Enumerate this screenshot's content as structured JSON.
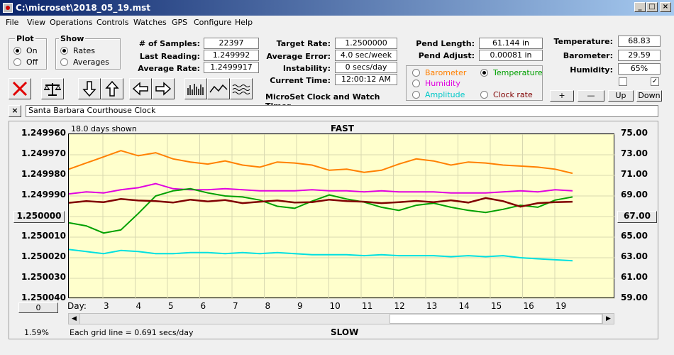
{
  "window": {
    "title": "C:\\microset\\2018_05_19.mst"
  },
  "menu": [
    "File",
    "View",
    "Operations",
    "Controls",
    "Watches",
    "GPS",
    "Configure",
    "Help"
  ],
  "plot_group": {
    "label": "Plot",
    "on": "On",
    "off": "Off",
    "selected": "On"
  },
  "show_group": {
    "label": "Show",
    "rates": "Rates",
    "averages": "Averages",
    "selected": "Rates"
  },
  "stats": {
    "samples_label": "# of Samples:",
    "samples": "22397",
    "last_label": "Last Reading:",
    "last": "1.249992",
    "avg_label": "Average Rate:",
    "avg": "1.2499917",
    "target_label": "Target Rate:",
    "target": "1.2500000",
    "error_label": "Average Error:",
    "error": "4.0 sec/week",
    "instab_label": "Instability:",
    "instab": "0 secs/day",
    "time_label": "Current Time:",
    "time": "12:00:12 AM",
    "pendlen_label": "Pend Length:",
    "pendlen": "61.144 in",
    "pendadj_label": "Pend Adjust:",
    "pendadj": "0.00081 in",
    "temp_label": "Temperature:",
    "temp": "68.83",
    "baro_label": "Barometer:",
    "baro": "29.59",
    "hum_label": "Humidity:",
    "hum": "65%"
  },
  "app_caption": "MicroSet Clock and Watch Timer",
  "sensor_group": {
    "barometer": "Barometer",
    "temperature": "Temperature",
    "humidity": "Humidity",
    "amplitude": "Amplitude",
    "clock_rate": "Clock rate",
    "selected": "Temperature"
  },
  "adjust_buttons": {
    "plus": "+",
    "minus": "—",
    "up": "Up",
    "down": "Down"
  },
  "clock_name": "Santa Barbara Courthouse Clock",
  "close_x": "×",
  "chart_header": {
    "days_shown": "18.0 days shown",
    "fast": "FAST",
    "slow": "SLOW",
    "grid_note": "Each grid line = 0.691 secs/day",
    "percent": "1.59%",
    "day_label": "Day:",
    "zero_btn": "0",
    "left_btn": "1.250000",
    "right_btn": "67.00"
  },
  "colors": {
    "barometer": "#ff8000",
    "temperature": "#00a000",
    "humidity": "#e000e0",
    "amplitude": "#00e0e0",
    "clock_rate": "#800000",
    "plot_bg": "#ffffcc"
  },
  "chart_data": {
    "type": "line",
    "x_label": "Day:",
    "x_ticks": [
      "3",
      "4",
      "5",
      "6",
      "7",
      "8",
      "9",
      "10",
      "11",
      "12",
      "13",
      "14",
      "15",
      "16",
      "19"
    ],
    "y_left_ticks": [
      "1.249960",
      "1.249970",
      "1.249980",
      "1.249990",
      "1.250000",
      "1.250010",
      "1.250020",
      "1.250030",
      "1.250040"
    ],
    "y_right_ticks": [
      "75.00",
      "73.00",
      "71.00",
      "69.00",
      "67.00",
      "65.00",
      "63.00",
      "61.00",
      "59.00"
    ],
    "y_left_range": [
      1.24996,
      1.25004
    ],
    "y_right_range": [
      59,
      75
    ],
    "series": [
      {
        "name": "Barometer",
        "color": "#ff8000",
        "values": [
          71.6,
          72.2,
          72.8,
          73.4,
          72.9,
          73.2,
          72.6,
          72.3,
          72.1,
          72.4,
          72.0,
          71.8,
          72.3,
          72.2,
          72.0,
          71.5,
          71.6,
          71.3,
          71.5,
          72.1,
          72.6,
          72.4,
          72.0,
          72.3,
          72.2,
          72.0,
          71.9,
          71.8,
          71.6,
          71.2
        ]
      },
      {
        "name": "Humidity",
        "color": "#e000e0",
        "values": [
          69.2,
          69.4,
          69.3,
          69.6,
          69.8,
          70.2,
          69.7,
          69.6,
          69.6,
          69.7,
          69.6,
          69.5,
          69.5,
          69.5,
          69.6,
          69.5,
          69.5,
          69.4,
          69.5,
          69.4,
          69.4,
          69.4,
          69.3,
          69.3,
          69.3,
          69.4,
          69.5,
          69.4,
          69.6,
          69.5
        ]
      },
      {
        "name": "Temperature",
        "color": "#00a000",
        "values": [
          66.4,
          66.1,
          65.4,
          65.7,
          67.3,
          69.0,
          69.5,
          69.7,
          69.3,
          69.0,
          68.9,
          68.6,
          68.0,
          67.8,
          68.5,
          69.1,
          68.7,
          68.4,
          67.9,
          67.6,
          68.1,
          68.3,
          67.9,
          67.6,
          67.4,
          67.7,
          68.1,
          67.9,
          68.6,
          68.9
        ]
      },
      {
        "name": "Amplitude",
        "color": "#00e0e0",
        "values": [
          63.8,
          63.6,
          63.4,
          63.7,
          63.6,
          63.4,
          63.4,
          63.5,
          63.5,
          63.4,
          63.5,
          63.4,
          63.5,
          63.4,
          63.3,
          63.3,
          63.3,
          63.2,
          63.3,
          63.2,
          63.2,
          63.2,
          63.1,
          63.2,
          63.1,
          63.2,
          63.0,
          62.9,
          62.8,
          62.7
        ]
      },
      {
        "name": "Clock rate",
        "color": "#800000",
        "values": [
          1.2499933,
          1.2499925,
          1.249993,
          1.2499915,
          1.2499922,
          1.2499925,
          1.2499932,
          1.2499918,
          1.2499927,
          1.249992,
          1.2499935,
          1.2499928,
          1.2499922,
          1.2499932,
          1.249993,
          1.2499918,
          1.2499925,
          1.2499928,
          1.2499935,
          1.249993,
          1.2499924,
          1.249993,
          1.2499921,
          1.2499932,
          1.249991,
          1.2499925,
          1.2499952,
          1.2499935,
          1.249993,
          1.2499928
        ]
      }
    ]
  }
}
